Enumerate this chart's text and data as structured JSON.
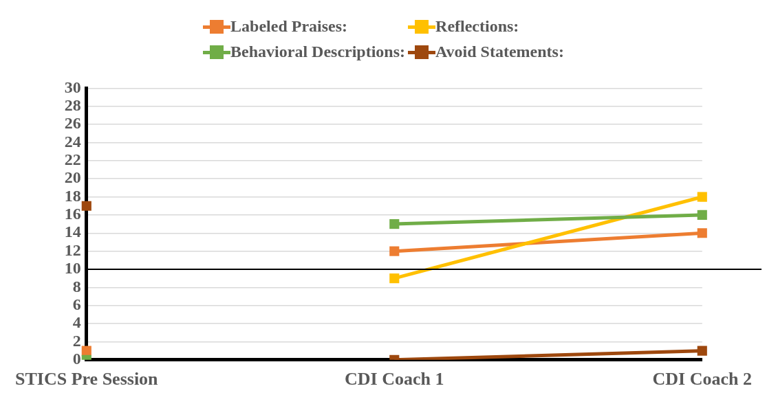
{
  "chart_data": {
    "type": "line",
    "categories": [
      "STICS Pre Session",
      "CDI Coach 1",
      "CDI Coach 2"
    ],
    "series": [
      {
        "name": "Labeled Praises:",
        "color": "#ed7d31",
        "values": [
          null,
          12,
          14
        ]
      },
      {
        "name": "Reflections:",
        "color": "#ffc000",
        "values": [
          null,
          9,
          18
        ]
      },
      {
        "name": "Behavioral Descriptions:",
        "color": "#70ad47",
        "values": [
          null,
          15,
          16
        ]
      },
      {
        "name": "Avoid Statements:",
        "color": "#9e480e",
        "values": [
          null,
          0,
          1
        ]
      },
      {
        "type": "scatter",
        "color": "#ed7d31",
        "x": [
          "STICS Pre Session"
        ],
        "values": [
          1
        ]
      },
      {
        "type": "scatter",
        "color": "#70ad47",
        "x": [
          "STICS Pre Session"
        ],
        "values": [
          0
        ]
      },
      {
        "type": "scatter",
        "color": "#9e480e",
        "x": [
          "STICS Pre Session"
        ],
        "values": [
          17
        ]
      }
    ],
    "ylim": [
      0,
      30
    ],
    "yticks": [
      0,
      2,
      4,
      6,
      8,
      10,
      12,
      14,
      16,
      18,
      20,
      22,
      24,
      26,
      28,
      30
    ],
    "ref_lines": [
      {
        "axis": "y",
        "value": 10,
        "color": "#000000"
      }
    ],
    "grid": "y",
    "legend": "top",
    "marker": "square"
  }
}
